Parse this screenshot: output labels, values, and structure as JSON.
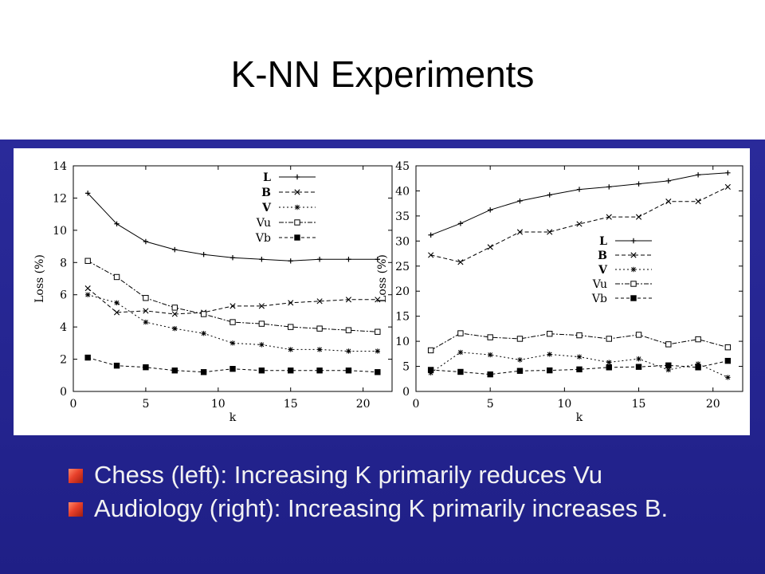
{
  "slide": {
    "title": "K-NN Experiments"
  },
  "bullets": [
    {
      "text": "Chess (left): Increasing K primarily reduces Vu"
    },
    {
      "text": "Audiology (right): Increasing K primarily increases B."
    }
  ],
  "colors": {
    "background_blue": "#24248f",
    "bullet_square": "#e8402a",
    "title_text": "#000000"
  },
  "chart_data": [
    {
      "type": "line",
      "xlabel": "k",
      "ylabel": "Loss (%)",
      "xlim": [
        0,
        22
      ],
      "ylim": [
        0,
        14
      ],
      "xticks": [
        0,
        5,
        10,
        15,
        20
      ],
      "yticks": [
        0,
        2,
        4,
        6,
        8,
        10,
        12,
        14
      ],
      "legend_position": "top-right",
      "x": [
        1,
        3,
        5,
        7,
        9,
        11,
        13,
        15,
        17,
        19,
        21
      ],
      "series": [
        {
          "name": "L",
          "marker": "plus",
          "values": [
            12.3,
            10.4,
            9.3,
            8.8,
            8.5,
            8.3,
            8.2,
            8.1,
            8.2,
            8.2,
            8.2
          ]
        },
        {
          "name": "B",
          "marker": "x",
          "values": [
            6.4,
            4.9,
            5.0,
            4.8,
            4.9,
            5.3,
            5.3,
            5.5,
            5.6,
            5.7,
            5.7
          ]
        },
        {
          "name": "V",
          "marker": "star",
          "values": [
            6.0,
            5.5,
            4.3,
            3.9,
            3.6,
            3.0,
            2.9,
            2.6,
            2.6,
            2.5,
            2.5
          ]
        },
        {
          "name": "Vu",
          "marker": "square",
          "values": [
            8.1,
            7.1,
            5.8,
            5.2,
            4.8,
            4.3,
            4.2,
            4.0,
            3.9,
            3.8,
            3.7
          ]
        },
        {
          "name": "Vb",
          "marker": "filled-square",
          "values": [
            2.1,
            1.6,
            1.5,
            1.3,
            1.2,
            1.4,
            1.3,
            1.3,
            1.3,
            1.3,
            1.2
          ]
        }
      ]
    },
    {
      "type": "line",
      "xlabel": "k",
      "ylabel": "Loss (%)",
      "xlim": [
        0,
        22
      ],
      "ylim": [
        0,
        45
      ],
      "xticks": [
        0,
        5,
        10,
        15,
        20
      ],
      "yticks": [
        0,
        5,
        10,
        15,
        20,
        25,
        30,
        35,
        40,
        45
      ],
      "legend_position": "center-right",
      "x": [
        1,
        3,
        5,
        7,
        9,
        11,
        13,
        15,
        17,
        19,
        21
      ],
      "series": [
        {
          "name": "L",
          "marker": "plus",
          "values": [
            31.2,
            33.5,
            36.2,
            38.0,
            39.2,
            40.3,
            40.8,
            41.4,
            42.0,
            43.2,
            43.6
          ]
        },
        {
          "name": "B",
          "marker": "x",
          "values": [
            27.2,
            25.8,
            28.8,
            31.8,
            31.8,
            33.4,
            34.8,
            34.8,
            37.9,
            37.9,
            40.8
          ]
        },
        {
          "name": "V",
          "marker": "star",
          "values": [
            3.7,
            7.8,
            7.3,
            6.3,
            7.4,
            6.9,
            5.8,
            6.5,
            4.3,
            5.5,
            2.8
          ]
        },
        {
          "name": "Vu",
          "marker": "square",
          "values": [
            8.2,
            11.6,
            10.8,
            10.5,
            11.5,
            11.2,
            10.5,
            11.3,
            9.4,
            10.4,
            8.8
          ]
        },
        {
          "name": "Vb",
          "marker": "filled-square",
          "values": [
            4.3,
            3.9,
            3.4,
            4.1,
            4.2,
            4.4,
            4.8,
            4.9,
            5.2,
            4.8,
            6.1
          ]
        }
      ]
    }
  ]
}
